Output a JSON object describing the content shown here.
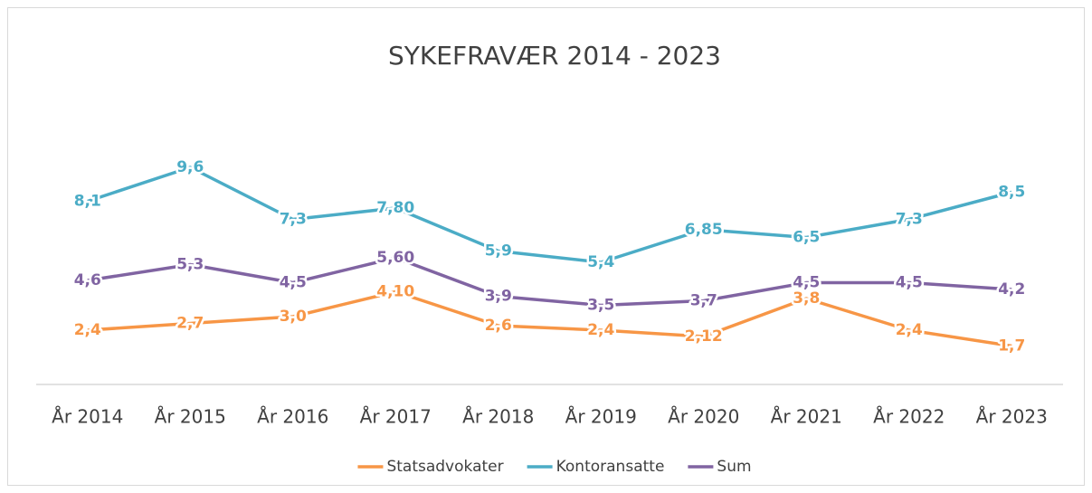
{
  "chart_data": {
    "type": "line",
    "title": "SYKEFRAVÆR 2014 - 2023",
    "categories": [
      "År 2014",
      "År 2015",
      "År 2016",
      "År 2017",
      "År 2018",
      "År 2019",
      "År 2020",
      "År 2021",
      "År 2022",
      "År 2023"
    ],
    "ylim": [
      0,
      12
    ],
    "series": [
      {
        "name": "Statsadvokater",
        "color": "#f79646",
        "values": [
          2.4,
          2.7,
          3.0,
          4.1,
          2.6,
          2.4,
          2.12,
          3.8,
          2.4,
          1.7
        ],
        "value_labels": [
          "2,4",
          "2,7",
          "3,0",
          "4,10",
          "2,6",
          "2,4",
          "2,12",
          "3,8",
          "2,4",
          "1,7"
        ]
      },
      {
        "name": "Kontoransatte",
        "color": "#4bacc6",
        "values": [
          8.1,
          9.6,
          7.3,
          7.8,
          5.9,
          5.4,
          6.85,
          6.5,
          7.3,
          8.5
        ],
        "value_labels": [
          "8,1",
          "9,6",
          "7,3",
          "7,80",
          "5,9",
          "5,4",
          "6,85",
          "6,5",
          "7,3",
          "8,5"
        ]
      },
      {
        "name": "Sum",
        "color": "#8064a2",
        "values": [
          4.6,
          5.3,
          4.5,
          5.6,
          3.9,
          3.5,
          3.7,
          4.5,
          4.5,
          4.2
        ],
        "value_labels": [
          "4,6",
          "5,3",
          "4,5",
          "5,60",
          "3,9",
          "3,5",
          "3,7",
          "4,5",
          "4,5",
          "4,2"
        ]
      }
    ],
    "legend": "bottom"
  }
}
